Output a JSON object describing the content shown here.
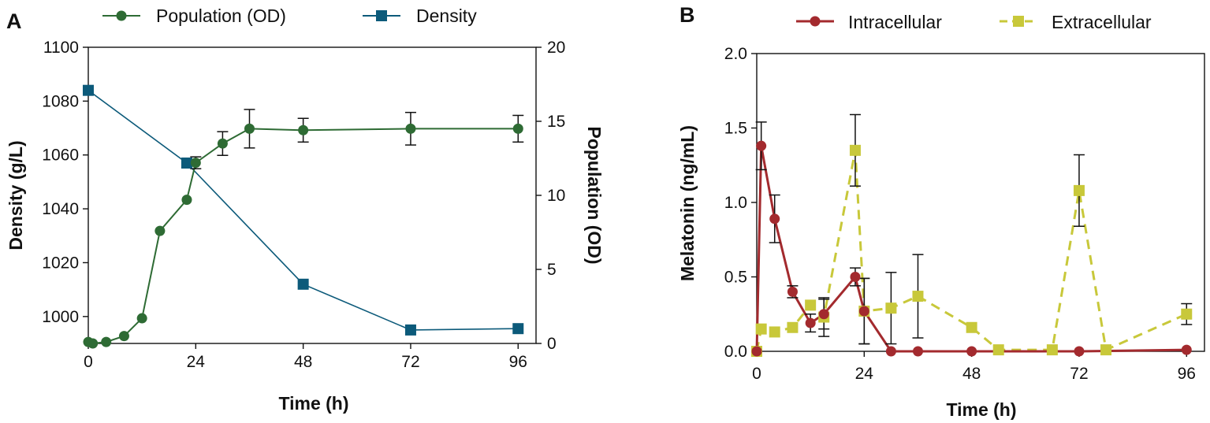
{
  "chart_data": [
    {
      "panel": "A",
      "type": "line",
      "x_label": "Time (h)",
      "x_ticks": [
        0,
        24,
        48,
        72,
        96
      ],
      "xlim": [
        0,
        100
      ],
      "y_left_label": "Density (g/L)",
      "y_left_ticks": [
        1000,
        1020,
        1040,
        1060,
        1080,
        1100
      ],
      "y_left_lim": [
        990,
        1100
      ],
      "y_right_label": "Population (OD)",
      "y_right_ticks": [
        0,
        5,
        10,
        15,
        20
      ],
      "y_right_lim": [
        0,
        20
      ],
      "legend": [
        "Population (OD)",
        "Density"
      ],
      "legend_position": "top",
      "series": [
        {
          "name": "Population (OD)",
          "axis": "right",
          "color": "#2e6b34",
          "marker": "circle",
          "x": [
            0,
            1,
            4,
            8,
            12,
            16,
            22,
            24,
            30,
            36,
            48,
            72,
            96
          ],
          "y": [
            0.1,
            0.0,
            0.1,
            0.5,
            1.7,
            7.6,
            9.7,
            12.2,
            13.5,
            14.5,
            14.4,
            14.5,
            14.5
          ],
          "error": [
            0,
            0,
            0,
            0,
            0,
            0,
            0,
            0.4,
            0.8,
            1.3,
            0.8,
            1.1,
            0.9
          ]
        },
        {
          "name": "Density",
          "axis": "left",
          "color": "#0c5a7a",
          "marker": "square",
          "x": [
            0,
            22,
            48,
            72,
            96
          ],
          "y": [
            1084,
            1057,
            1012,
            995,
            995.5
          ]
        }
      ]
    },
    {
      "panel": "B",
      "type": "line",
      "x_label": "Time (h)",
      "x_ticks": [
        0,
        24,
        48,
        72,
        96
      ],
      "xlim": [
        0,
        100
      ],
      "y_label": "Melatonin (ng/mL)",
      "y_ticks": [
        "0.0",
        "0.5",
        "1.0",
        "1.5",
        "2.0"
      ],
      "ylim": [
        0,
        2
      ],
      "legend": [
        "Intracellular",
        "Extracellular"
      ],
      "legend_position": "top",
      "series": [
        {
          "name": "Intracellular",
          "color": "#a32a2e",
          "marker": "circle",
          "line_style": "solid",
          "x": [
            0,
            1,
            4,
            8,
            12,
            15,
            22,
            24,
            30,
            36,
            48,
            72,
            96
          ],
          "y": [
            0.0,
            1.38,
            0.89,
            0.4,
            0.19,
            0.25,
            0.5,
            0.27,
            0.0,
            0.0,
            0.0,
            0.0,
            0.01
          ],
          "error": [
            0,
            0.16,
            0.16,
            0.04,
            0.06,
            0.1,
            0.06,
            0.22,
            0,
            0,
            0,
            0,
            0
          ]
        },
        {
          "name": "Extracellular",
          "color": "#c8c83a",
          "marker": "square",
          "line_style": "dashed",
          "x": [
            0,
            1,
            4,
            8,
            12,
            15,
            22,
            24,
            30,
            36,
            48,
            54,
            66,
            72,
            78,
            96
          ],
          "y": [
            0.0,
            0.15,
            0.13,
            0.16,
            0.31,
            0.23,
            1.35,
            0.27,
            0.29,
            0.37,
            0.16,
            0.01,
            0.01,
            1.08,
            0.01,
            0.25
          ],
          "error": [
            0,
            0,
            0,
            0,
            0,
            0.13,
            0.24,
            0.22,
            0.24,
            0.28,
            0,
            0,
            0,
            0.24,
            0,
            0.07
          ]
        }
      ]
    }
  ]
}
